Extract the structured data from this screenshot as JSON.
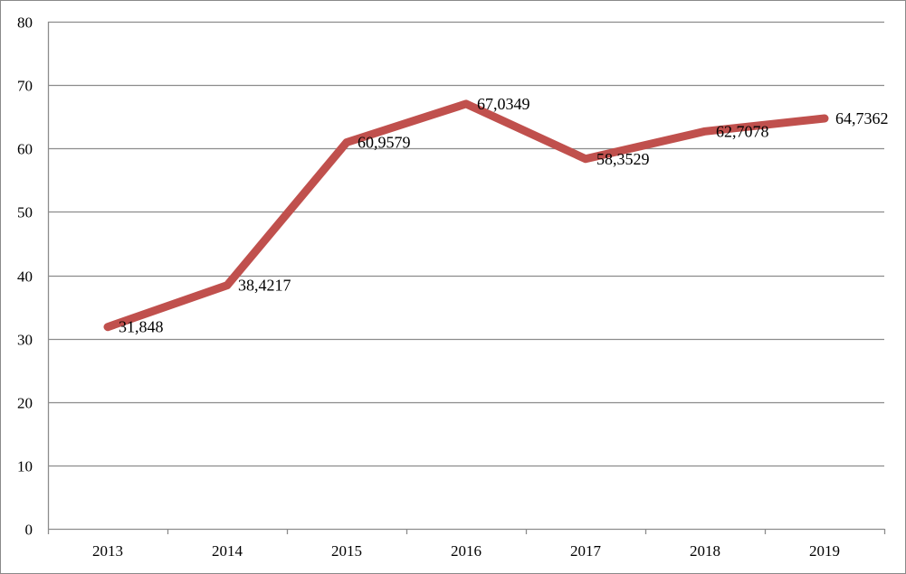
{
  "chart_data": {
    "type": "line",
    "title": "",
    "xlabel": "",
    "ylabel": "",
    "categories": [
      "2013",
      "2014",
      "2015",
      "2016",
      "2017",
      "2018",
      "2019"
    ],
    "series": [
      {
        "values": [
          31.848,
          38.4217,
          60.9579,
          67.0349,
          58.3529,
          62.7078,
          64.7362
        ],
        "data_labels": [
          "31,848",
          "38,4217",
          "60,9579",
          "67,0349",
          "58,3529",
          "62,7078",
          "64,7362"
        ],
        "color": "#c0504d"
      }
    ],
    "ylim": [
      0,
      80
    ],
    "yticks": [
      0,
      10,
      20,
      30,
      40,
      50,
      60,
      70,
      80
    ],
    "grid": true,
    "legend": "none",
    "gridline_color": "#8c8c8c",
    "axis_color": "#8c8c8c"
  }
}
